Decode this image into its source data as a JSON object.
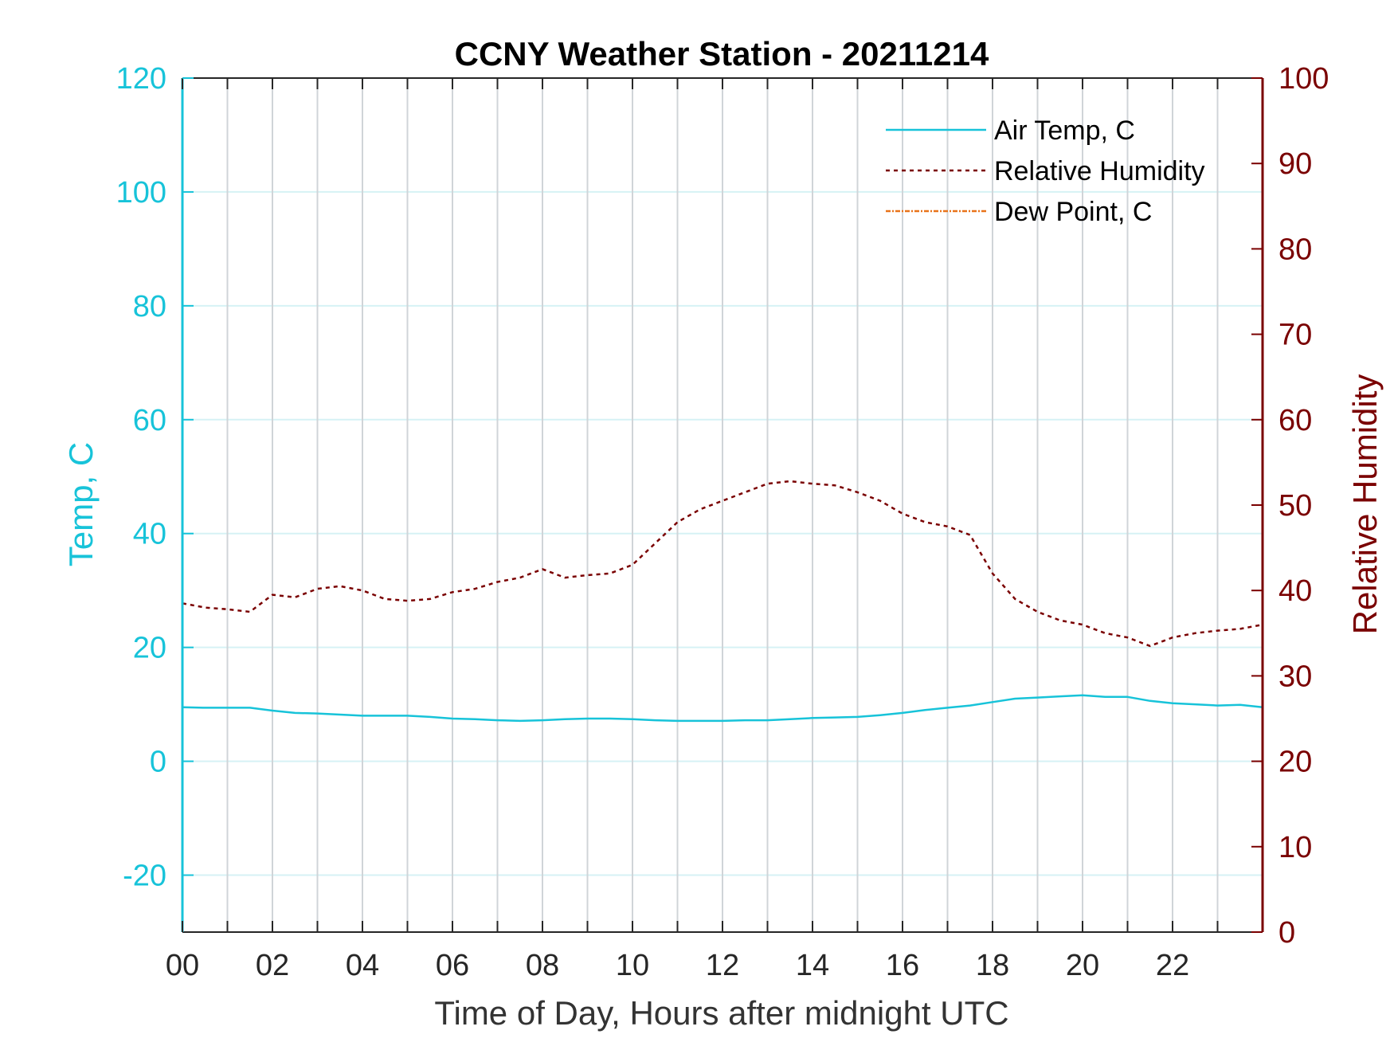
{
  "chart_data": {
    "type": "line",
    "title": "CCNY Weather Station - 20211214",
    "xlabel": "Time of Day, Hours after midnight UTC",
    "ylabel_left": "Temp, C",
    "ylabel_right": "Relative Humidity",
    "xlim": [
      0,
      24
    ],
    "ylim_left": [
      -30,
      120
    ],
    "ylim_right": [
      0,
      100
    ],
    "x_ticks": [
      0,
      2,
      4,
      6,
      8,
      10,
      12,
      14,
      16,
      18,
      20,
      22
    ],
    "x_tick_labels": [
      "00",
      "02",
      "04",
      "06",
      "08",
      "10",
      "12",
      "14",
      "16",
      "18",
      "20",
      "22"
    ],
    "x_grid": [
      0,
      1,
      2,
      3,
      4,
      5,
      6,
      7,
      8,
      9,
      10,
      11,
      12,
      13,
      14,
      15,
      16,
      17,
      18,
      19,
      20,
      21,
      22,
      23
    ],
    "y_left_ticks": [
      -20,
      0,
      20,
      40,
      60,
      80,
      100,
      120
    ],
    "y_right_ticks": [
      0,
      10,
      20,
      30,
      40,
      50,
      60,
      70,
      80,
      90,
      100
    ],
    "grid": true,
    "legend_position": "top-right",
    "colors": {
      "temp": "#17c3d9",
      "rh": "#7a0000",
      "dew": "#e8731a",
      "grid": "#d0d4d8",
      "hgrid": "#d6f2f5"
    },
    "series": [
      {
        "name": "Air Temp, C",
        "axis": "left",
        "style": "solid",
        "x": [
          0,
          0.5,
          1,
          1.5,
          2,
          2.5,
          3,
          3.5,
          4,
          4.5,
          5,
          5.5,
          6,
          6.5,
          7,
          7.5,
          8,
          8.5,
          9,
          9.5,
          10,
          10.5,
          11,
          11.5,
          12,
          12.5,
          13,
          13.5,
          14,
          14.5,
          15,
          15.5,
          16,
          16.5,
          17,
          17.5,
          18,
          18.5,
          19,
          19.5,
          20,
          20.5,
          21,
          21.5,
          22,
          22.5,
          23,
          23.5,
          24
        ],
        "y": [
          9.5,
          9.4,
          9.4,
          9.4,
          8.9,
          8.5,
          8.4,
          8.2,
          8.0,
          8.0,
          8.0,
          7.8,
          7.5,
          7.4,
          7.2,
          7.1,
          7.2,
          7.4,
          7.5,
          7.5,
          7.4,
          7.2,
          7.1,
          7.1,
          7.1,
          7.2,
          7.2,
          7.4,
          7.6,
          7.7,
          7.8,
          8.1,
          8.5,
          9.0,
          9.4,
          9.8,
          10.4,
          11.0,
          11.2,
          11.4,
          11.6,
          11.3,
          11.3,
          10.6,
          10.2,
          10.0,
          9.8,
          9.9,
          9.5
        ]
      },
      {
        "name": "Relative Humidity",
        "axis": "right",
        "style": "dashed",
        "x": [
          0,
          0.5,
          1,
          1.5,
          2,
          2.5,
          3,
          3.5,
          4,
          4.5,
          5,
          5.5,
          6,
          6.5,
          7,
          7.5,
          8,
          8.5,
          9,
          9.5,
          10,
          10.5,
          11,
          11.5,
          12,
          12.5,
          13,
          13.5,
          14,
          14.5,
          15,
          15.5,
          16,
          16.5,
          17,
          17.5,
          18,
          18.5,
          19,
          19.5,
          20,
          20.5,
          21,
          21.5,
          22,
          22.5,
          23,
          23.5,
          24
        ],
        "y": [
          38.5,
          38.0,
          37.8,
          37.5,
          39.5,
          39.2,
          40.2,
          40.5,
          40.0,
          39.0,
          38.8,
          39.0,
          39.8,
          40.2,
          41.0,
          41.5,
          42.5,
          41.5,
          41.8,
          42.0,
          43.0,
          45.5,
          48.0,
          49.5,
          50.5,
          51.5,
          52.5,
          52.8,
          52.5,
          52.3,
          51.5,
          50.5,
          49.0,
          48.0,
          47.5,
          46.5,
          42.0,
          39.0,
          37.5,
          36.5,
          36.0,
          35.0,
          34.5,
          33.5,
          34.5,
          35.0,
          35.3,
          35.5,
          36.0
        ]
      },
      {
        "name": "Dew Point, C",
        "axis": "left",
        "style": "dashdot",
        "x": [],
        "y": []
      }
    ]
  }
}
